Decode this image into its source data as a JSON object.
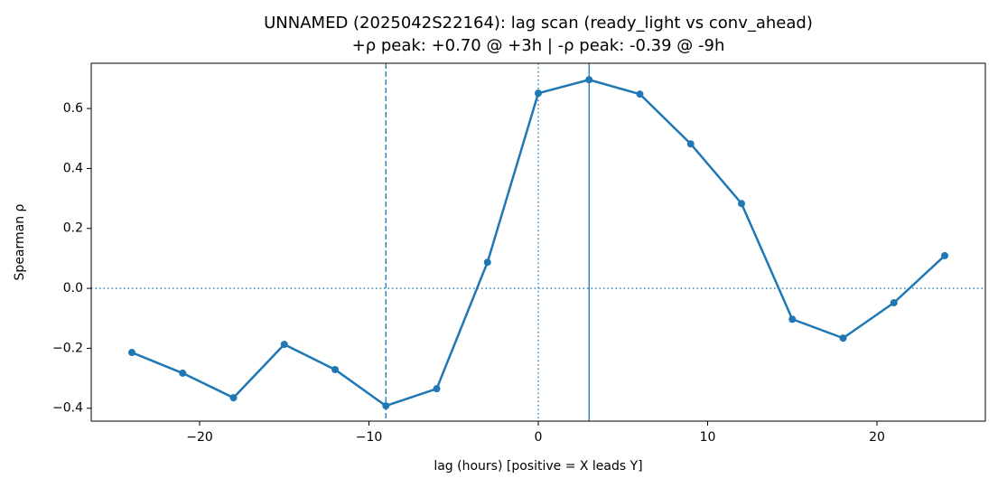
{
  "chart_data": {
    "type": "line",
    "title": "UNNAMED (2025042S22164): lag scan (ready_light vs conv_ahead)",
    "subtitle": "+ρ peak: +0.70 @ +3h | -ρ peak: -0.39 @ -9h",
    "x_label": "lag (hours) [positive = X leads Y]",
    "y_label": "Spearman ρ",
    "x": [
      -24,
      -21,
      -18,
      -15,
      -12,
      -9,
      -6,
      -3,
      0,
      3,
      6,
      9,
      12,
      15,
      18,
      21,
      24
    ],
    "values": [
      -0.214,
      -0.283,
      -0.365,
      -0.187,
      -0.271,
      -0.392,
      -0.335,
      0.087,
      0.651,
      0.696,
      0.648,
      0.482,
      0.283,
      -0.103,
      -0.166,
      -0.048,
      0.109
    ],
    "color": "#1f77b4",
    "xlim": [
      -26.4,
      26.4
    ],
    "ylim": [
      -0.443,
      0.751
    ],
    "xticks": [
      {
        "value": -20,
        "label": "−20"
      },
      {
        "value": -10,
        "label": "−10"
      },
      0,
      10,
      20
    ],
    "yticks": [
      {
        "value": -0.4,
        "label": "−0.4"
      },
      {
        "value": -0.2,
        "label": "−0.2"
      },
      {
        "value": 0,
        "label": "0.0"
      },
      0.2,
      0.4,
      0.6
    ],
    "vlines": [
      {
        "x": -9,
        "style": "dashed"
      },
      {
        "x": 3,
        "style": "solid"
      },
      {
        "x": 0,
        "style": "dotted"
      }
    ],
    "hlines": [
      {
        "y": 0,
        "style": "dotted"
      }
    ],
    "grid": false
  }
}
